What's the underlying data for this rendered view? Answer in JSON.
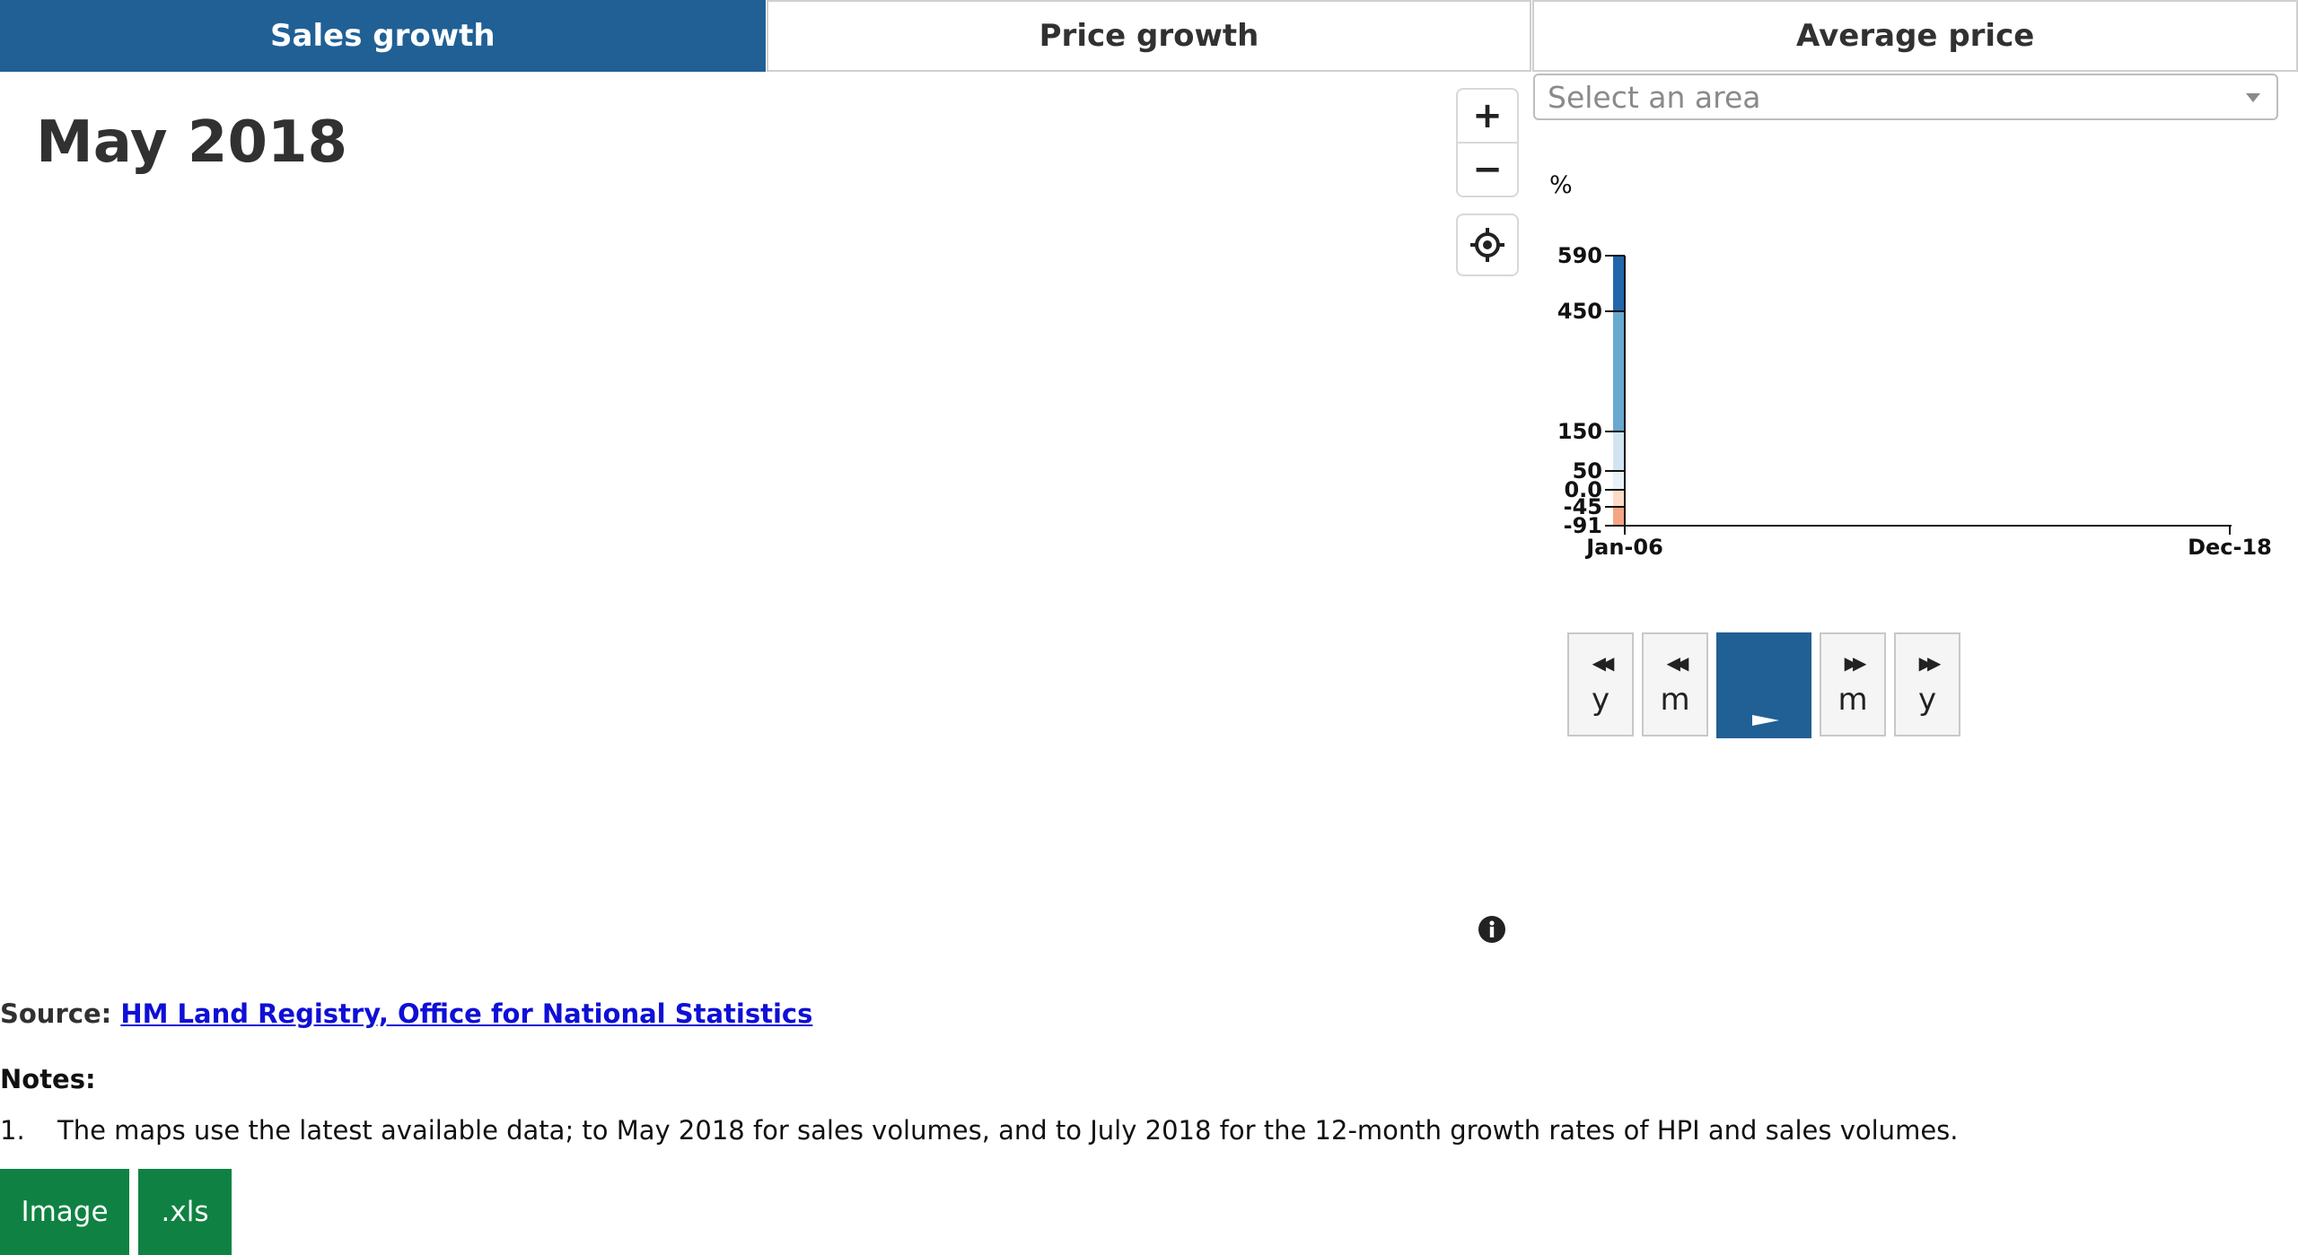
{
  "tabs": [
    {
      "label": "Sales growth",
      "active": true
    },
    {
      "label": "Price growth",
      "active": false
    },
    {
      "label": "Average price",
      "active": false
    }
  ],
  "date_title": "May 2018",
  "map_controls": {
    "zoom_in": "+",
    "zoom_out": "−",
    "locate_icon": "crosshair-icon",
    "info_icon": "info-icon"
  },
  "area_select": {
    "placeholder": "Select an area"
  },
  "chart_data": {
    "type": "bar",
    "ylabel": "%",
    "yticks": [
      "590",
      "450",
      "150",
      "50",
      "0.0",
      "-45",
      "-91"
    ],
    "x_tick_labels": [
      "Jan-06",
      "Dec-18"
    ],
    "legend_bands": [
      {
        "from": -91,
        "to": -45,
        "color": "#f4a582"
      },
      {
        "from": -45,
        "to": 0,
        "color": "#fddbc7"
      },
      {
        "from": 0,
        "to": 50,
        "color": "#e8f1f8"
      },
      {
        "from": 50,
        "to": 150,
        "color": "#d1e5f0"
      },
      {
        "from": 150,
        "to": 450,
        "color": "#67a9cf"
      },
      {
        "from": 450,
        "to": 590,
        "color": "#2166ac"
      }
    ]
  },
  "playback": {
    "back_year": {
      "glyph": "◀◀",
      "label": "y"
    },
    "back_month": {
      "glyph": "◀◀",
      "label": "m"
    },
    "play": {
      "glyph": "▶"
    },
    "fwd_month": {
      "glyph": "▶▶",
      "label": "m"
    },
    "fwd_year": {
      "glyph": "▶▶",
      "label": "y"
    }
  },
  "source": {
    "label": "Source:",
    "link_text": "HM Land Registry, Office for National Statistics"
  },
  "notes": {
    "title": "Notes:",
    "items": [
      {
        "num": "1.",
        "text": "The maps use the latest available data; to May 2018 for sales volumes, and to July 2018 for the 12-month growth rates of HPI and sales volumes."
      }
    ]
  },
  "downloads": {
    "image": "Image",
    "xls": ".xls"
  },
  "colors": {
    "accent": "#206095",
    "download": "#0f8243",
    "link": "#0f0fd6"
  }
}
